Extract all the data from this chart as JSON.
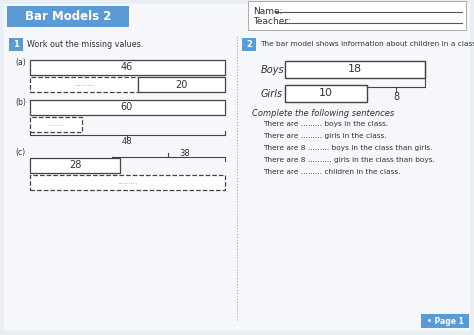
{
  "title": "Bar Models 2",
  "title_bg": "#5b9bd5",
  "title_color": "#ffffff",
  "bg_color": "#e8eef4",
  "page_bg": "#f5f7fa",
  "q1_label": "1",
  "q1_text": "Work out the missing values.",
  "q2_label": "2",
  "q2_text": "The bar model shows information about children in a class.",
  "name_label": "Name:",
  "teacher_label": "Teacher:",
  "sentences_header": "Complete the following sentences",
  "sentences": [
    "There are ......... boys in the class.",
    "There are ......... girls in the class.",
    "There are 8 ......... boys in the class than girls.",
    "There are 8 .......... girls in the class than boys.",
    "There are ......... children in the class."
  ],
  "page_label": "• Page 1",
  "label_bg": "#5b9bd5",
  "label_color": "#ffffff",
  "bar_edge": "#444444",
  "text_dark": "#333333",
  "divider_color": "#aaaaaa"
}
